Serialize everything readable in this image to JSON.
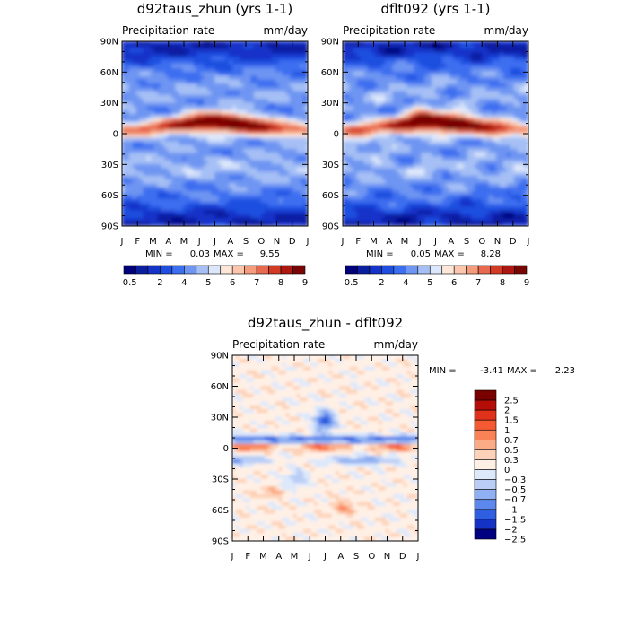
{
  "chart_data": [
    {
      "type": "heatmap",
      "id": "p1",
      "title": "d92taus_zhun (yrs 1-1)",
      "variable": "Precipitation rate",
      "units": "mm/day",
      "x_ticks": [
        "J",
        "F",
        "M",
        "A",
        "M",
        "J",
        "J",
        "A",
        "S",
        "O",
        "N",
        "D",
        "J"
      ],
      "y_ticks": [
        "90N",
        "60N",
        "30N",
        "0",
        "30S",
        "60S",
        "90S"
      ],
      "min_label": "MIN =",
      "max_label": "MAX =",
      "min": "0.03",
      "max": "9.55",
      "colorbar_labels": [
        "0.5",
        "2",
        "4",
        "5",
        "6",
        "7",
        "8",
        "9"
      ]
    },
    {
      "type": "heatmap",
      "id": "p2",
      "title": "dflt092 (yrs 1-1)",
      "variable": "Precipitation rate",
      "units": "mm/day",
      "x_ticks": [
        "J",
        "F",
        "M",
        "A",
        "M",
        "J",
        "J",
        "A",
        "S",
        "O",
        "N",
        "D",
        "J"
      ],
      "y_ticks": [
        "90N",
        "60N",
        "30N",
        "0",
        "30S",
        "60S",
        "90S"
      ],
      "min_label": "MIN =",
      "max_label": "MAX =",
      "min": "0.05",
      "max": "8.28",
      "colorbar_labels": [
        "0.5",
        "2",
        "4",
        "5",
        "6",
        "7",
        "8",
        "9"
      ]
    },
    {
      "type": "heatmap",
      "id": "p3",
      "title": "d92taus_zhun - dflt092",
      "variable": "Precipitation rate",
      "units": "mm/day",
      "x_ticks": [
        "J",
        "F",
        "M",
        "A",
        "M",
        "J",
        "J",
        "A",
        "S",
        "O",
        "N",
        "D",
        "J"
      ],
      "y_ticks": [
        "90N",
        "60N",
        "30N",
        "0",
        "30S",
        "60S",
        "90S"
      ],
      "min_label": "MIN =",
      "max_label": "MAX =",
      "min": "-3.41",
      "max": "2.23",
      "colorbar_labels": [
        "2.5",
        "2",
        "1.5",
        "1",
        "0.7",
        "0.5",
        "0.3",
        "0",
        "−0.3",
        "−0.5",
        "−0.7",
        "−1",
        "−1.5",
        "−2",
        "−2.5"
      ]
    }
  ],
  "colors": {
    "abs_scale": [
      "#00007a",
      "#0a1ea0",
      "#1433c8",
      "#1f4fe0",
      "#3c6ef0",
      "#6e95f2",
      "#a6c0f5",
      "#dde7fb",
      "#ffe6d6",
      "#fbc6ac",
      "#f49c7c",
      "#e8694d",
      "#d23a24",
      "#ae1810",
      "#7a0505"
    ],
    "diff_scale": [
      "#7a0000",
      "#b50d08",
      "#e0321a",
      "#f55a32",
      "#fa8257",
      "#fbab86",
      "#fdd2b8",
      "#fff0e6",
      "#dde8fb",
      "#b9cdf6",
      "#8fb0f2",
      "#5c87ec",
      "#2f5fe0",
      "#1432c4",
      "#000080"
    ]
  }
}
